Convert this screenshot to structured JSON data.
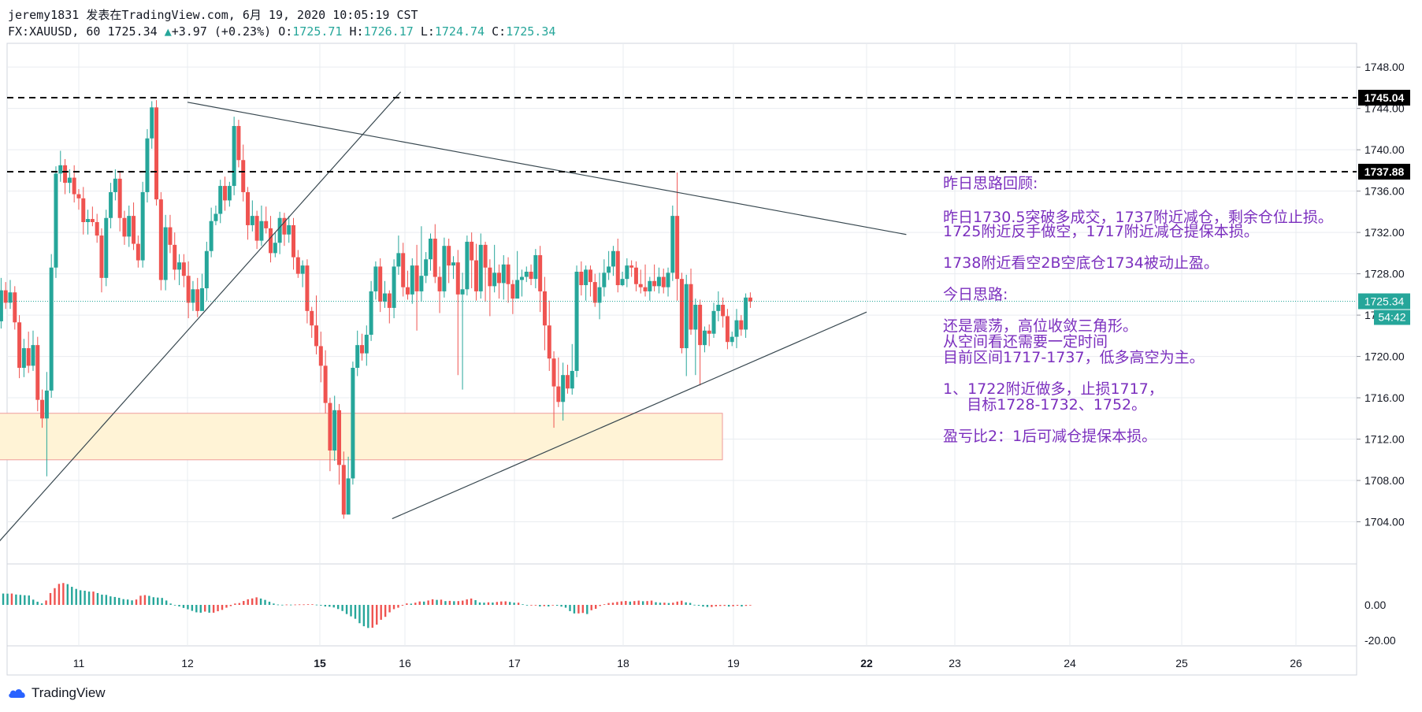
{
  "header": {
    "line1": "jeremy1831 发表在TradingView.com, 6月 19, 2020 10:05:19 CST",
    "symbol": "FX:XAUUSD, 60",
    "last": "1725.34",
    "change_arrow": "▲",
    "change": "+3.97 (+0.23%)",
    "o_label": "O:",
    "o_val": "1725.71",
    "h_label": "H:",
    "h_val": "1726.17",
    "l_label": "L:",
    "l_val": "1724.74",
    "c_label": "C:",
    "c_val": "1725.34"
  },
  "annotations": {
    "a1": "昨日思路回顾:",
    "a2": "昨日1730.5突破多成交，1737附近减仓，剩余仓位止损。",
    "a3": "1725附近反手做空，1717附近减仓提保本损。",
    "a4": "1738附近看空2B空底仓1734被动止盈。",
    "a5": "今日思路:",
    "a6": "还是震荡，高位收敛三角形。",
    "a7": "从空间看还需要一定时间",
    "a8": "目前区间1717-1737，低多高空为主。",
    "a9": "1、1722附近做多，止损1717，",
    "a10": "     目标1728-1732、1752。",
    "a11": "盈亏比2：1后可减仓提保本损。"
  },
  "footer": {
    "brand": "TradingView"
  },
  "colors": {
    "up": "#26a69a",
    "down": "#ef5350",
    "grid": "#e9ecf0",
    "annotation": "#7b2fbe",
    "zone": "#fff3d6"
  },
  "chart_data": {
    "type": "candlestick",
    "symbol": "FX:XAUUSD",
    "timeframe": "60",
    "price_axis": {
      "ticks": [
        "1748.00",
        "1744.00",
        "1740.00",
        "1736.00",
        "1732.00",
        "1728.00",
        "1724.00",
        "1720.00",
        "1716.00",
        "1712.00",
        "1708.00",
        "1704.00"
      ],
      "range": [
        1700.0,
        1750.3
      ]
    },
    "time_axis": {
      "ticks": [
        "11",
        "12",
        "15",
        "16",
        "17",
        "18",
        "19",
        "22",
        "23",
        "24",
        "25",
        "26"
      ],
      "bold": [
        "15",
        "22"
      ]
    },
    "horizontal_lines": [
      {
        "price": 1745.04,
        "label": "1745.04",
        "style": "dashed"
      },
      {
        "price": 1737.88,
        "label": "1737.88",
        "style": "dashed"
      }
    ],
    "last_price": {
      "price": 1725.34,
      "label": "1725.34",
      "countdown": "54:42"
    },
    "support_zone": {
      "from": 1710.0,
      "to": 1714.5,
      "start_time": 10.15,
      "end_time": 18.9
    },
    "trendlines": [
      {
        "t1": 10.15,
        "p1": 1700.2,
        "t2": 15.95,
        "p2": 1745.6
      },
      {
        "t1": 12.0,
        "p1": 1744.6,
        "t2": 22.45,
        "p2": 1731.8
      },
      {
        "t1": 15.85,
        "p1": 1704.3,
        "t2": 22.0,
        "p2": 1724.3
      }
    ],
    "candles": [
      [
        1718.2,
        1716.5,
        1719.1,
        1715.9
      ],
      [
        1716.5,
        1714.9,
        1717.8,
        1714.4
      ],
      [
        1714.9,
        1715.7,
        1717.1,
        1714.2
      ],
      [
        1715.7,
        1717.9,
        1719.3,
        1715.0
      ],
      [
        1717.9,
        1717.3,
        1718.8,
        1716.2
      ],
      [
        1717.3,
        1718.6,
        1719.9,
        1716.7
      ],
      [
        1718.6,
        1720.2,
        1721.4,
        1717.9
      ],
      [
        1720.2,
        1723.4,
        1724.6,
        1719.6
      ],
      [
        1723.4,
        1726.4,
        1727.6,
        1722.7
      ],
      [
        1726.4,
        1725.2,
        1727.2,
        1724.6
      ],
      [
        1725.2,
        1726.2,
        1727.4,
        1724.6
      ],
      [
        1726.2,
        1723.3,
        1726.8,
        1722.6
      ],
      [
        1723.3,
        1718.9,
        1724.0,
        1717.9
      ],
      [
        1718.9,
        1720.8,
        1721.7,
        1718.0
      ],
      [
        1720.8,
        1719.1,
        1722.4,
        1718.4
      ],
      [
        1719.1,
        1721.1,
        1722.5,
        1718.6
      ],
      [
        1721.1,
        1715.8,
        1721.9,
        1714.7
      ],
      [
        1715.8,
        1714.0,
        1716.8,
        1713.1
      ],
      [
        1714.0,
        1716.7,
        1718.5,
        1708.4
      ],
      [
        1716.7,
        1728.6,
        1729.9,
        1716.0
      ],
      [
        1728.6,
        1737.7,
        1738.4,
        1727.6
      ],
      [
        1737.7,
        1738.5,
        1739.9,
        1736.9
      ],
      [
        1738.5,
        1736.8,
        1739.1,
        1735.7
      ],
      [
        1736.8,
        1737.3,
        1738.1,
        1735.8
      ],
      [
        1737.3,
        1735.7,
        1738.5,
        1734.9
      ],
      [
        1735.7,
        1735.3,
        1736.2,
        1734.2
      ],
      [
        1735.3,
        1733.0,
        1736.4,
        1731.8
      ],
      [
        1733.0,
        1733.3,
        1734.2,
        1731.8
      ],
      [
        1733.3,
        1733.0,
        1734.5,
        1732.6
      ],
      [
        1733.0,
        1731.7,
        1733.8,
        1731.0
      ],
      [
        1731.7,
        1727.6,
        1732.4,
        1726.2
      ],
      [
        1727.6,
        1733.4,
        1734.2,
        1726.8
      ],
      [
        1733.4,
        1735.9,
        1736.8,
        1732.4
      ],
      [
        1735.9,
        1737.2,
        1738.1,
        1735.1
      ],
      [
        1737.2,
        1733.4,
        1737.9,
        1732.1
      ],
      [
        1733.4,
        1731.6,
        1734.1,
        1730.8
      ],
      [
        1731.6,
        1733.6,
        1734.6,
        1730.6
      ],
      [
        1733.6,
        1730.9,
        1734.9,
        1730.3
      ],
      [
        1730.9,
        1729.3,
        1731.7,
        1728.6
      ],
      [
        1729.3,
        1735.9,
        1736.9,
        1728.6
      ],
      [
        1735.9,
        1741.1,
        1742.0,
        1734.9
      ],
      [
        1741.1,
        1744.1,
        1744.7,
        1740.1
      ],
      [
        1744.1,
        1735.2,
        1744.8,
        1734.6
      ],
      [
        1735.2,
        1727.4,
        1735.9,
        1726.4
      ],
      [
        1727.4,
        1732.5,
        1733.7,
        1726.4
      ],
      [
        1732.5,
        1730.8,
        1733.7,
        1730.0
      ],
      [
        1730.8,
        1728.4,
        1732.0,
        1727.4
      ],
      [
        1728.4,
        1729.1,
        1729.9,
        1726.9
      ],
      [
        1729.1,
        1727.8,
        1729.9,
        1726.7
      ],
      [
        1727.8,
        1725.2,
        1729.2,
        1723.7
      ],
      [
        1725.2,
        1726.5,
        1727.3,
        1724.4
      ],
      [
        1726.5,
        1724.4,
        1727.6,
        1723.8
      ],
      [
        1724.4,
        1726.6,
        1728.0,
        1725.9
      ],
      [
        1726.6,
        1730.2,
        1731.1,
        1725.4
      ],
      [
        1730.2,
        1733.1,
        1734.4,
        1729.6
      ],
      [
        1733.1,
        1733.8,
        1734.6,
        1732.7
      ],
      [
        1733.8,
        1736.5,
        1737.1,
        1732.9
      ],
      [
        1736.5,
        1735.1,
        1737.4,
        1734.1
      ],
      [
        1735.1,
        1736.5,
        1736.9,
        1734.5
      ],
      [
        1736.5,
        1742.3,
        1743.2,
        1735.6
      ],
      [
        1742.3,
        1739.0,
        1742.9,
        1738.3
      ],
      [
        1739.0,
        1735.9,
        1740.5,
        1735.0
      ],
      [
        1735.9,
        1732.7,
        1736.4,
        1731.3
      ],
      [
        1732.7,
        1733.6,
        1735.1,
        1732.1
      ],
      [
        1733.6,
        1731.2,
        1734.1,
        1730.4
      ],
      [
        1731.2,
        1733.1,
        1734.6,
        1730.7
      ],
      [
        1733.1,
        1732.4,
        1734.5,
        1731.9
      ],
      [
        1732.4,
        1730.0,
        1733.6,
        1729.1
      ],
      [
        1730.0,
        1731.0,
        1732.0,
        1729.6
      ],
      [
        1731.0,
        1733.4,
        1734.0,
        1729.9
      ],
      [
        1733.4,
        1731.8,
        1733.9,
        1730.7
      ],
      [
        1731.8,
        1732.7,
        1733.6,
        1731.0
      ],
      [
        1732.7,
        1729.6,
        1733.4,
        1728.4
      ],
      [
        1729.6,
        1728.0,
        1730.3,
        1727.6
      ],
      [
        1728.0,
        1728.8,
        1729.3,
        1726.7
      ],
      [
        1728.8,
        1724.4,
        1729.4,
        1723.2
      ],
      [
        1724.4,
        1723.0,
        1724.8,
        1721.8
      ],
      [
        1723.0,
        1721.0,
        1725.9,
        1720.2
      ],
      [
        1721.0,
        1719.1,
        1722.4,
        1717.5
      ],
      [
        1719.1,
        1715.5,
        1720.6,
        1714.5
      ],
      [
        1715.5,
        1710.9,
        1716.0,
        1708.9
      ],
      [
        1710.9,
        1714.8,
        1716.2,
        1709.9
      ],
      [
        1714.8,
        1709.5,
        1715.4,
        1707.6
      ],
      [
        1709.5,
        1704.7,
        1710.8,
        1704.3
      ],
      [
        1704.7,
        1708.2,
        1710.3,
        1707.3
      ],
      [
        1708.2,
        1718.9,
        1719.5,
        1707.6
      ],
      [
        1718.9,
        1721.1,
        1722.5,
        1718.1
      ],
      [
        1721.1,
        1720.3,
        1722.2,
        1719.6
      ],
      [
        1720.3,
        1722.1,
        1723.0,
        1719.1
      ],
      [
        1722.1,
        1726.3,
        1727.3,
        1721.5
      ],
      [
        1726.3,
        1728.7,
        1729.2,
        1725.5
      ],
      [
        1728.7,
        1725.3,
        1729.5,
        1724.3
      ],
      [
        1725.3,
        1726.1,
        1727.3,
        1724.7
      ],
      [
        1726.1,
        1724.7,
        1726.4,
        1723.2
      ],
      [
        1724.7,
        1728.7,
        1729.4,
        1723.7
      ],
      [
        1728.7,
        1730.0,
        1731.7,
        1727.9
      ],
      [
        1730.0,
        1726.7,
        1731.0,
        1725.8
      ],
      [
        1726.7,
        1726.0,
        1728.3,
        1725.5
      ],
      [
        1726.0,
        1728.8,
        1729.5,
        1725.1
      ],
      [
        1728.8,
        1726.3,
        1730.8,
        1722.5
      ],
      [
        1726.3,
        1727.8,
        1732.6,
        1725.3
      ],
      [
        1727.8,
        1729.4,
        1730.1,
        1727.1
      ],
      [
        1729.4,
        1731.4,
        1731.9,
        1728.3
      ],
      [
        1731.4,
        1727.7,
        1732.8,
        1727.1
      ],
      [
        1727.7,
        1726.3,
        1728.7,
        1724.2
      ],
      [
        1726.3,
        1730.7,
        1731.5,
        1725.7
      ],
      [
        1730.7,
        1728.8,
        1731.4,
        1727.1
      ],
      [
        1728.8,
        1729.1,
        1729.7,
        1727.5
      ],
      [
        1729.1,
        1726.0,
        1730.3,
        1718.2
      ],
      [
        1726.0,
        1726.5,
        1728.1,
        1716.8
      ],
      [
        1726.5,
        1731.1,
        1731.7,
        1725.9
      ],
      [
        1731.1,
        1729.3,
        1732.0,
        1726.6
      ],
      [
        1729.3,
        1726.3,
        1730.9,
        1725.4
      ],
      [
        1726.3,
        1730.8,
        1731.9,
        1725.6
      ],
      [
        1730.8,
        1728.6,
        1731.1,
        1725.3
      ],
      [
        1728.6,
        1726.8,
        1729.4,
        1723.9
      ],
      [
        1726.8,
        1728.1,
        1730.8,
        1726.2
      ],
      [
        1728.1,
        1727.1,
        1728.9,
        1725.6
      ],
      [
        1727.1,
        1728.9,
        1729.8,
        1725.5
      ],
      [
        1728.9,
        1727.0,
        1729.6,
        1725.2
      ],
      [
        1727.0,
        1725.6,
        1727.4,
        1724.1
      ],
      [
        1725.6,
        1727.4,
        1730.2,
        1726.7
      ],
      [
        1727.4,
        1727.7,
        1728.4,
        1725.8
      ],
      [
        1727.7,
        1728.2,
        1728.7,
        1727.2
      ],
      [
        1728.2,
        1727.5,
        1728.9,
        1726.9
      ],
      [
        1727.5,
        1729.8,
        1730.4,
        1726.6
      ],
      [
        1729.8,
        1726.3,
        1730.7,
        1724.3
      ],
      [
        1726.3,
        1723.0,
        1727.7,
        1720.6
      ],
      [
        1723.0,
        1719.8,
        1725.4,
        1718.6
      ],
      [
        1719.8,
        1717.1,
        1720.5,
        1713.1
      ],
      [
        1717.1,
        1715.6,
        1719.9,
        1715.1
      ],
      [
        1715.6,
        1718.2,
        1719.4,
        1713.8
      ],
      [
        1718.2,
        1716.9,
        1719.2,
        1716.4
      ],
      [
        1716.9,
        1718.6,
        1721.2,
        1716.3
      ],
      [
        1718.6,
        1728.2,
        1728.8,
        1718.0
      ],
      [
        1728.2,
        1726.9,
        1729.2,
        1725.9
      ],
      [
        1726.9,
        1728.4,
        1728.8,
        1725.4
      ],
      [
        1728.4,
        1727.2,
        1728.8,
        1725.8
      ],
      [
        1727.2,
        1725.2,
        1728.0,
        1724.8
      ],
      [
        1725.2,
        1726.7,
        1728.1,
        1723.6
      ],
      [
        1726.7,
        1728.1,
        1729.4,
        1725.8
      ],
      [
        1728.1,
        1728.7,
        1730.2,
        1727.4
      ],
      [
        1728.7,
        1730.2,
        1730.7,
        1727.8
      ],
      [
        1730.2,
        1726.9,
        1731.4,
        1726.2
      ],
      [
        1726.9,
        1727.5,
        1728.2,
        1726.8
      ],
      [
        1727.5,
        1728.8,
        1729.5,
        1726.7
      ],
      [
        1728.8,
        1728.6,
        1729.3,
        1727.7
      ],
      [
        1728.6,
        1727.0,
        1729.2,
        1726.3
      ],
      [
        1727.0,
        1726.7,
        1728.4,
        1726.1
      ],
      [
        1726.7,
        1726.3,
        1728.9,
        1725.8
      ],
      [
        1726.3,
        1727.3,
        1727.7,
        1725.4
      ],
      [
        1727.3,
        1726.8,
        1728.9,
        1726.3
      ],
      [
        1726.8,
        1727.7,
        1728.6,
        1726.1
      ],
      [
        1727.7,
        1726.7,
        1728.5,
        1726.1
      ],
      [
        1726.7,
        1728.1,
        1728.6,
        1725.8
      ],
      [
        1728.1,
        1733.6,
        1734.6,
        1727.3
      ],
      [
        1733.6,
        1727.5,
        1737.8,
        1725.4
      ],
      [
        1727.5,
        1720.8,
        1728.1,
        1720.3
      ],
      [
        1720.8,
        1727.0,
        1727.9,
        1718.1
      ],
      [
        1727.0,
        1722.6,
        1728.5,
        1722.1
      ],
      [
        1722.6,
        1725.0,
        1725.6,
        1718.2
      ],
      [
        1725.0,
        1721.1,
        1725.5,
        1717.2
      ],
      [
        1721.1,
        1722.5,
        1722.9,
        1720.4
      ],
      [
        1722.5,
        1722.2,
        1723.1,
        1721.0
      ],
      [
        1722.2,
        1724.4,
        1725.2,
        1721.8
      ],
      [
        1724.4,
        1725.0,
        1726.3,
        1723.4
      ],
      [
        1725.0,
        1723.9,
        1725.7,
        1722.8
      ],
      [
        1723.9,
        1721.4,
        1724.6,
        1720.7
      ],
      [
        1721.4,
        1721.9,
        1722.4,
        1721.0
      ],
      [
        1721.9,
        1723.5,
        1724.6,
        1720.8
      ],
      [
        1723.5,
        1722.6,
        1724.0,
        1722.0
      ],
      [
        1722.6,
        1725.7,
        1726.1,
        1721.8
      ],
      [
        1725.7,
        1725.3,
        1726.2,
        1724.7
      ]
    ],
    "macd_histogram": {
      "ticks": [
        "0.00",
        "-20.00"
      ],
      "values": [
        11.8,
        10.3,
        10.0,
        9.6,
        9.7,
        9.6,
        9.4,
        9.3,
        9.4,
        9.3,
        9.2,
        9.3,
        8.5,
        8.2,
        7.9,
        7.7,
        4.3,
        2.6,
        1.2,
        3.6,
        9.7,
        13.7,
        17.2,
        17.9,
        17.0,
        14.8,
        13.1,
        12.0,
        11.6,
        10.9,
        10.9,
        9.7,
        8.4,
        8.2,
        7.0,
        6.5,
        5.8,
        4.7,
        4.4,
        3.7,
        4.4,
        7.5,
        8.0,
        7.4,
        6.3,
        6.0,
        5.7,
        3.6,
        1.1,
        -0.2,
        -1.3,
        -2.5,
        -3.6,
        -4.9,
        -6.1,
        -6.4,
        -5.5,
        -6.4,
        -6.4,
        -5.2,
        -4.1,
        -2.3,
        -1.0,
        1.1,
        1.5,
        3.2,
        4.6,
        5.3,
        6.2,
        5.2,
        4.1,
        2.6,
        1.1,
        0.3,
        0.1,
        0.3,
        0.2,
        0.3,
        0.4,
        0.4,
        0.5,
        0.5,
        0.2,
        -0.6,
        -1.3,
        -1.5,
        -2.1,
        -3.4,
        -5.0,
        -7.5,
        -9.4,
        -11.4,
        -15.0,
        -17.5,
        -18.9,
        -18.7,
        -16.2,
        -12.2,
        -9.8,
        -6.1,
        -3.5,
        -2.3,
        -0.6,
        1.2,
        1.0,
        1.8,
        2.8,
        2.7,
        3.6,
        4.6,
        4.1,
        4.3,
        3.1,
        3.3,
        3.0,
        3.1,
        3.5,
        4.5,
        5.2,
        3.9,
        2.0,
        1.8,
        2.1,
        1.9,
        2.4,
        2.8,
        2.9,
        2.4,
        1.8,
        1.8,
        0.5,
        -0.5,
        -0.4,
        -0.1,
        -1.3,
        -1.0,
        -1.3,
        -0.3,
        -0.7,
        -1.4,
        -2.3,
        -5.1,
        -7.0,
        -7.0,
        -6.6,
        -7.5,
        -4.4,
        -3.2,
        -0.9,
        0.5,
        1.5,
        1.8,
        2.4,
        2.9,
        3.2,
        2.7,
        3.1,
        3.5,
        3.0,
        3.1,
        3.5,
        2.2,
        1.8,
        1.8,
        1.5,
        1.8,
        2.7,
        3.4,
        2.1,
        1.6,
        0.1,
        -0.7,
        -1.4,
        -1.7,
        -1.7,
        -1.2,
        -0.9,
        -0.8,
        -1.4,
        -1.1,
        -0.7,
        -1.3,
        -0.8,
        -0.2
      ]
    }
  }
}
